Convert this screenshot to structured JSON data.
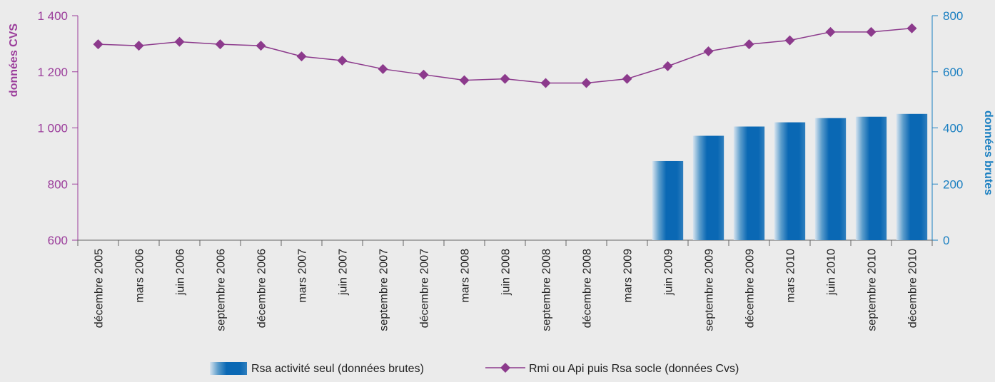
{
  "chart_data": {
    "type": "bar+line",
    "categories": [
      "décembre 2005",
      "mars 2006",
      "juin 2006",
      "septembre 2006",
      "décembre 2006",
      "mars 2007",
      "juin 2007",
      "septembre 2007",
      "décembre 2007",
      "mars 2008",
      "juin 2008",
      "septembre 2008",
      "décembre 2008",
      "mars 2009",
      "juin 2009",
      "septembre 2009",
      "décembre 2009",
      "mars 2010",
      "juin 2010",
      "septembre 2010",
      "décembre 2010"
    ],
    "left_axis": {
      "label": "données CVS",
      "ylim": [
        600,
        1400
      ],
      "ticks": [
        600,
        800,
        1000,
        1200,
        1400
      ],
      "tick_labels": [
        "600",
        "800",
        "1 000",
        "1 200",
        "1 400"
      ]
    },
    "right_axis": {
      "label": "données brutes",
      "ylim": [
        0,
        800
      ],
      "ticks": [
        0,
        200,
        400,
        600,
        800
      ],
      "tick_labels": [
        "0",
        "200",
        "400",
        "600",
        "800"
      ]
    },
    "series": [
      {
        "name": "Rsa activité seul (données brutes)",
        "type": "bar",
        "axis": "right",
        "values": [
          null,
          null,
          null,
          null,
          null,
          null,
          null,
          null,
          null,
          null,
          null,
          null,
          null,
          null,
          282,
          372,
          405,
          420,
          435,
          440,
          450
        ]
      },
      {
        "name": "Rmi ou Api puis Rsa socle (données Cvs)",
        "type": "line",
        "axis": "left",
        "values": [
          1298,
          1293,
          1307,
          1298,
          1293,
          1255,
          1240,
          1210,
          1190,
          1170,
          1175,
          1160,
          1160,
          1175,
          1220,
          1273,
          1298,
          1312,
          1342,
          1342,
          1355
        ]
      }
    ],
    "colors": {
      "left_axis": "#9b3d9b",
      "right_axis": "#1a7fc1",
      "bar": "#0a68b4",
      "line": "#8c3a8c",
      "background": "#ebebeb"
    },
    "legend_position": "bottom-center",
    "grid": false
  }
}
